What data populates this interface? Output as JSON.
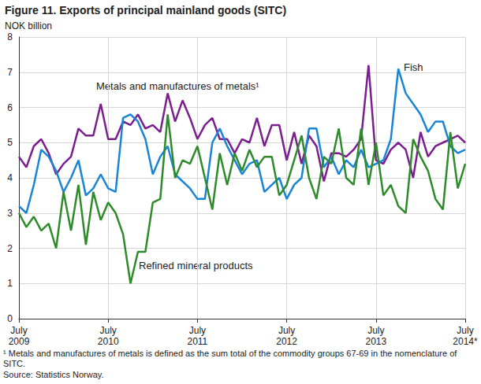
{
  "chart_data": {
    "type": "line",
    "title": "Figure 11. Exports of principal mainland goods (SITC)",
    "y_label": "NOK billion",
    "footnote": "¹ Metals and manufactures of metals is defined as the sum total of the commodity groups 67-69 in the nomenclature of SITC.",
    "source": "Source: Statistics Norway.",
    "categories": [
      "July\n2009",
      null,
      null,
      null,
      null,
      null,
      null,
      null,
      null,
      null,
      null,
      null,
      "July\n2010",
      null,
      null,
      null,
      null,
      null,
      null,
      null,
      null,
      null,
      null,
      null,
      "July\n2011",
      null,
      null,
      null,
      null,
      null,
      null,
      null,
      null,
      null,
      null,
      null,
      "July\n2012",
      null,
      null,
      null,
      null,
      null,
      null,
      null,
      null,
      null,
      null,
      null,
      "July\n2013",
      null,
      null,
      null,
      null,
      null,
      null,
      null,
      null,
      null,
      null,
      null,
      "July\n2014*"
    ],
    "series": [
      {
        "name": "Metals and manufactures of metals¹",
        "color": "#7b1f8e",
        "values": [
          4.6,
          4.3,
          4.9,
          5.1,
          4.7,
          4.1,
          4.4,
          4.6,
          5.4,
          5.2,
          5.2,
          6.1,
          5.1,
          5.1,
          5.6,
          5.5,
          5.8,
          5.4,
          5.5,
          5.3,
          6.4,
          5.6,
          6.2,
          5.7,
          5.1,
          5.5,
          5.7,
          5.1,
          5.1,
          4.7,
          5.1,
          5.0,
          5.7,
          4.9,
          5.5,
          5.5,
          4.5,
          5.3,
          4.4,
          5.2,
          4.9,
          3.9,
          4.7,
          4.7,
          4.6,
          4.8,
          5.1,
          7.2,
          4.5,
          4.4,
          4.8,
          5.0,
          4.8,
          4.0,
          5.3,
          4.6,
          4.9,
          5.0,
          5.1,
          5.2,
          5.0
        ]
      },
      {
        "name": "Fish",
        "color": "#1a85d6",
        "values": [
          3.2,
          3.0,
          3.8,
          4.8,
          4.6,
          4.2,
          3.6,
          4.0,
          4.5,
          3.5,
          3.7,
          4.1,
          3.7,
          3.6,
          5.7,
          5.8,
          5.6,
          5.1,
          4.1,
          4.6,
          4.9,
          4.1,
          3.9,
          3.7,
          3.4,
          3.4,
          5.0,
          5.4,
          4.9,
          4.5,
          4.1,
          4.4,
          4.5,
          3.6,
          3.8,
          4.0,
          3.4,
          3.8,
          4.0,
          5.4,
          5.4,
          4.3,
          4.6,
          4.1,
          4.5,
          4.3,
          4.8,
          4.3,
          4.4,
          4.5,
          5.1,
          7.1,
          6.4,
          6.1,
          5.8,
          5.3,
          5.6,
          5.6,
          4.9,
          4.7,
          4.8
        ]
      },
      {
        "name": "Refined mineral products",
        "color": "#2e8b2a",
        "values": [
          3.0,
          2.6,
          2.9,
          2.5,
          2.7,
          2.0,
          3.6,
          2.5,
          3.8,
          2.1,
          3.6,
          2.8,
          3.3,
          3.0,
          2.4,
          1.0,
          1.9,
          1.9,
          3.3,
          3.4,
          5.8,
          4.0,
          4.5,
          4.4,
          4.9,
          4.0,
          3.1,
          4.7,
          3.8,
          4.7,
          4.2,
          4.8,
          4.3,
          4.6,
          4.6,
          3.5,
          3.8,
          4.5,
          5.2,
          4.0,
          3.4,
          4.6,
          4.4,
          5.4,
          4.0,
          3.8,
          5.4,
          3.8,
          5.0,
          3.5,
          3.8,
          3.2,
          3.0,
          5.1,
          4.6,
          4.2,
          3.4,
          3.1,
          5.3,
          3.7,
          4.4
        ]
      }
    ],
    "ylim": [
      0,
      8
    ],
    "yticks": [
      0,
      1,
      2,
      3,
      4,
      5,
      6,
      7,
      8
    ],
    "grid": true
  }
}
